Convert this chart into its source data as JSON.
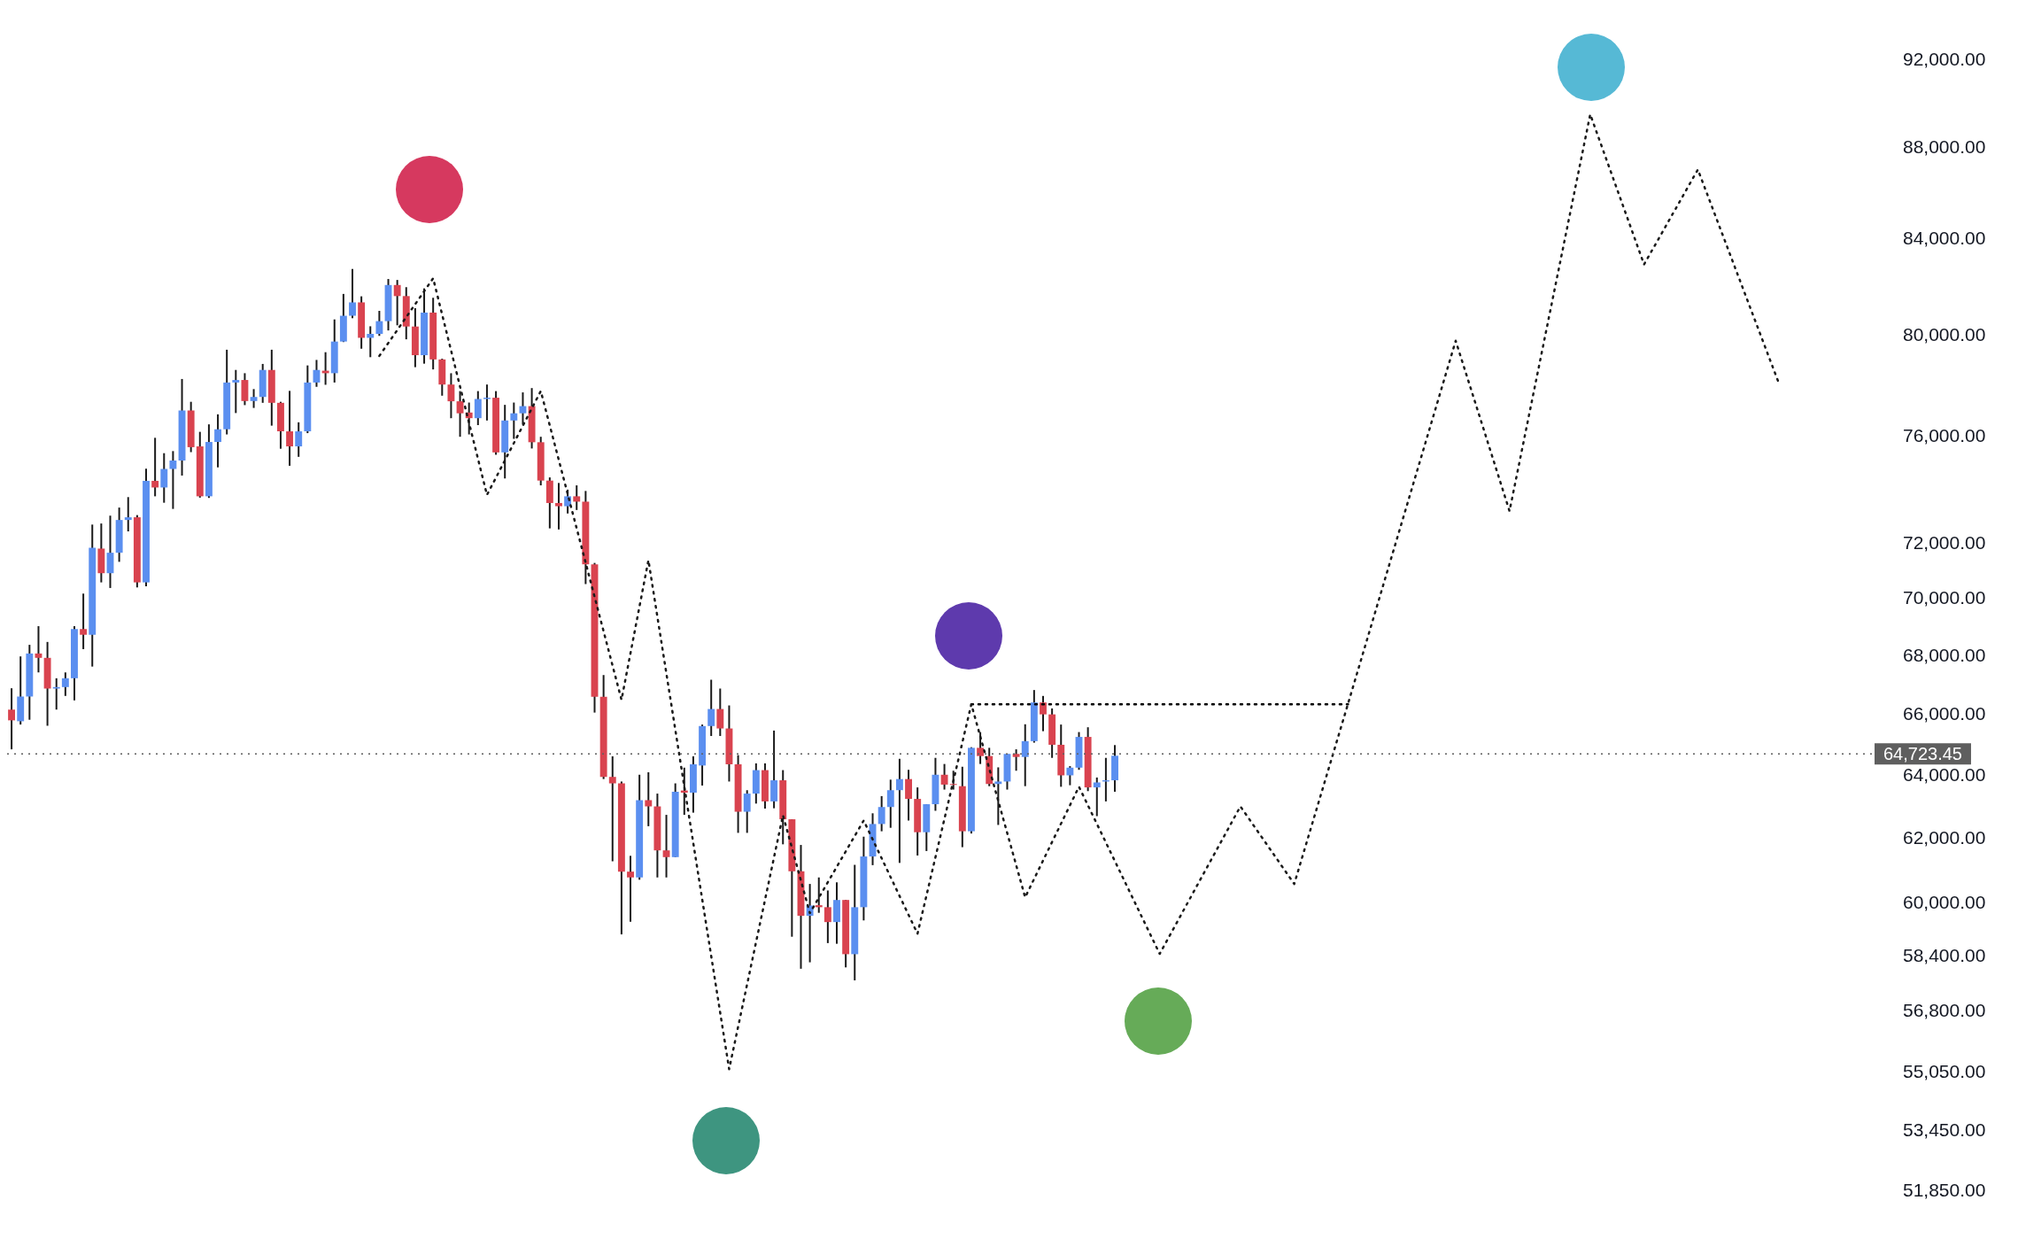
{
  "chart_data": {
    "type": "candlestick",
    "log": "y",
    "grid": false,
    "tick_labels": "y",
    "legend": false,
    "categories": [
      null,
      null,
      null,
      null,
      null,
      null,
      null,
      null,
      null,
      null,
      null,
      null,
      null,
      null,
      null,
      null,
      null,
      null,
      null,
      null,
      null,
      null,
      null,
      null,
      null,
      null,
      null,
      null,
      null,
      null,
      null,
      null,
      null,
      null,
      null,
      null,
      null,
      null,
      null,
      null,
      null,
      null,
      null,
      null,
      null,
      null,
      null,
      null,
      null,
      null,
      null,
      null,
      null,
      null,
      null,
      null,
      null,
      null,
      null,
      null,
      null,
      null,
      null,
      null,
      null,
      null,
      null,
      null,
      null,
      null,
      null,
      null,
      null,
      null,
      null,
      null,
      null,
      null,
      null,
      null,
      null,
      null,
      null,
      null,
      null,
      null,
      null,
      null,
      null,
      null,
      null,
      null,
      null,
      null,
      null,
      null,
      null,
      null,
      null,
      null,
      null,
      null,
      null,
      null,
      null,
      null,
      null,
      null,
      null,
      null,
      null,
      null,
      null,
      null,
      null,
      null,
      null,
      null,
      null,
      null,
      null,
      null,
      null,
      null,
      null,
      null,
      null,
      null,
      null,
      null,
      null,
      null,
      null,
      null,
      null,
      null,
      null,
      null,
      null,
      null,
      null,
      null,
      null,
      null,
      null,
      null,
      null,
      null,
      null,
      null,
      null,
      null,
      null,
      null,
      null,
      null,
      null,
      null,
      null,
      null,
      null,
      null,
      null,
      null,
      null,
      null,
      null,
      null,
      null,
      null,
      null,
      null,
      null,
      null,
      null,
      null,
      null,
      null,
      null,
      null,
      null,
      null,
      null,
      null,
      null,
      null,
      null,
      null,
      null,
      null,
      null,
      null,
      null,
      null,
      null,
      null,
      null,
      null,
      null,
      null,
      null,
      null,
      null,
      null,
      null,
      null,
      null,
      null
    ],
    "ylim": [
      51850,
      92000
    ],
    "yticks": [
      {
        "value": 51850,
        "label": "51,850.00"
      },
      {
        "value": 53450,
        "label": "53,450.00"
      },
      {
        "value": 55050,
        "label": "55,050.00"
      },
      {
        "value": 56800,
        "label": "56,800.00"
      },
      {
        "value": 58400,
        "label": "58,400.00"
      },
      {
        "value": 60000,
        "label": "60,000.00"
      },
      {
        "value": 62000,
        "label": "62,000.00"
      },
      {
        "value": 64000,
        "label": "64,000.00"
      },
      {
        "value": 66000,
        "label": "66,000.00"
      },
      {
        "value": 68000,
        "label": "68,000.00"
      },
      {
        "value": 70000,
        "label": "70,000.00"
      },
      {
        "value": 72000,
        "label": "72,000.00"
      },
      {
        "value": 76000,
        "label": "76,000.00"
      },
      {
        "value": 80000,
        "label": "80,000.00"
      },
      {
        "value": 84000,
        "label": "84,000.00"
      },
      {
        "value": 88000,
        "label": "88,000.00"
      },
      {
        "value": 92000,
        "label": "92,000.00"
      }
    ],
    "ref_lines": [
      {
        "axis": "y",
        "value": 64723.45,
        "label": "64,723.45",
        "color": "#5f5f5f",
        "line_style": "dotted"
      }
    ],
    "series": [
      {
        "ohlc": [
          [
            66190,
            66910,
            64870,
            65830
          ],
          [
            65800,
            68000,
            65690,
            66630
          ],
          [
            66630,
            68400,
            65850,
            68100
          ],
          [
            68100,
            69050,
            67450,
            67950
          ],
          [
            67950,
            68500,
            65650,
            66900
          ],
          [
            66900,
            67250,
            66190,
            66950
          ],
          [
            66950,
            67450,
            66650,
            67250
          ],
          [
            67250,
            69050,
            66500,
            68950
          ],
          [
            68950,
            70200,
            68250,
            68750
          ],
          [
            68750,
            72700,
            67650,
            71850
          ],
          [
            71820,
            72740,
            70600,
            70930
          ],
          [
            70930,
            73030,
            70400,
            71670
          ],
          [
            71670,
            73330,
            71340,
            72870
          ],
          [
            72870,
            73720,
            72450,
            72970
          ],
          [
            72970,
            73050,
            70420,
            70600
          ],
          [
            70600,
            74790,
            70460,
            74330
          ],
          [
            74330,
            75970,
            73750,
            74080
          ],
          [
            74080,
            75380,
            73510,
            74780
          ],
          [
            74780,
            75460,
            73280,
            75100
          ],
          [
            75100,
            78270,
            74530,
            77030
          ],
          [
            77030,
            77370,
            75420,
            75610
          ],
          [
            75640,
            76200,
            73700,
            73750
          ],
          [
            73750,
            76490,
            73690,
            75810
          ],
          [
            75810,
            76880,
            74840,
            76300
          ],
          [
            76300,
            79440,
            76100,
            78130
          ],
          [
            78130,
            78630,
            76930,
            78230
          ],
          [
            78230,
            78500,
            77240,
            77400
          ],
          [
            77400,
            77870,
            77130,
            77560
          ],
          [
            77560,
            78870,
            77330,
            78630
          ],
          [
            78630,
            79440,
            76440,
            77330
          ],
          [
            77330,
            77370,
            75550,
            76220
          ],
          [
            76220,
            77800,
            74900,
            75640
          ],
          [
            75640,
            76570,
            75240,
            76220
          ],
          [
            76220,
            78810,
            76150,
            78130
          ],
          [
            78130,
            79030,
            77960,
            78630
          ],
          [
            78600,
            79340,
            78040,
            78500
          ],
          [
            78500,
            80670,
            78130,
            79770
          ],
          [
            79770,
            81720,
            79750,
            80820
          ],
          [
            80820,
            82760,
            80720,
            81370
          ],
          [
            81370,
            81620,
            79480,
            79920
          ],
          [
            79920,
            80390,
            79140,
            80080
          ],
          [
            80080,
            81020,
            80000,
            80600
          ],
          [
            80600,
            82340,
            80220,
            82090
          ],
          [
            82090,
            82300,
            80430,
            81630
          ],
          [
            81630,
            82000,
            79860,
            80380
          ],
          [
            80380,
            81130,
            78740,
            79220
          ],
          [
            79220,
            81950,
            78880,
            80950
          ],
          [
            80950,
            81560,
            78650,
            79050
          ],
          [
            79050,
            79080,
            77610,
            78050
          ],
          [
            78050,
            78500,
            76730,
            77390
          ],
          [
            77390,
            77790,
            76010,
            76920
          ],
          [
            76950,
            77340,
            76100,
            76730
          ],
          [
            76730,
            77790,
            76460,
            77480
          ],
          [
            77480,
            78050,
            76640,
            77530
          ],
          [
            77530,
            77790,
            75320,
            75410
          ],
          [
            75410,
            77250,
            74420,
            76640
          ],
          [
            76640,
            77340,
            75930,
            76920
          ],
          [
            76920,
            77740,
            76490,
            77200
          ],
          [
            77200,
            77910,
            75560,
            75800
          ],
          [
            75800,
            76010,
            74160,
            74340
          ],
          [
            74340,
            74460,
            72560,
            73500
          ],
          [
            73500,
            74250,
            72520,
            73380
          ],
          [
            73380,
            74000,
            73110,
            73750
          ],
          [
            73750,
            74160,
            73240,
            73550
          ],
          [
            73550,
            73950,
            70540,
            71250
          ],
          [
            71250,
            71300,
            66090,
            66620
          ],
          [
            66620,
            67360,
            63900,
            63970
          ],
          [
            63970,
            64640,
            61290,
            63760
          ],
          [
            63760,
            63820,
            59060,
            60970
          ],
          [
            60970,
            61460,
            59440,
            60790
          ],
          [
            60790,
            64040,
            60720,
            63220
          ],
          [
            63220,
            64120,
            62390,
            63020
          ],
          [
            63020,
            63430,
            60790,
            61630
          ],
          [
            61630,
            62750,
            60790,
            61420
          ],
          [
            61420,
            63760,
            61420,
            63490
          ],
          [
            63530,
            64270,
            62750,
            63460
          ],
          [
            63460,
            64640,
            62820,
            64380
          ],
          [
            64340,
            65690,
            63690,
            65640
          ],
          [
            65640,
            67200,
            65310,
            66210
          ],
          [
            66210,
            66900,
            65310,
            65560
          ],
          [
            65560,
            66330,
            63820,
            64380
          ],
          [
            64380,
            64680,
            62180,
            62850
          ],
          [
            62850,
            63540,
            62180,
            63430
          ],
          [
            63430,
            64410,
            63110,
            64190
          ],
          [
            64190,
            64410,
            62950,
            63180
          ],
          [
            63180,
            65490,
            62960,
            63860
          ],
          [
            63860,
            64190,
            61820,
            62610
          ],
          [
            62610,
            62610,
            58990,
            60980
          ],
          [
            60980,
            61800,
            58040,
            59620
          ],
          [
            59620,
            60590,
            58230,
            59930
          ],
          [
            59940,
            60790,
            59710,
            59880
          ],
          [
            59880,
            60390,
            58800,
            59430
          ],
          [
            59430,
            60640,
            58780,
            60100
          ],
          [
            60100,
            60100,
            58080,
            58470
          ],
          [
            58470,
            61180,
            57700,
            59880
          ],
          [
            59880,
            62060,
            59480,
            61440
          ],
          [
            61440,
            62800,
            61170,
            62460
          ],
          [
            62460,
            63350,
            62230,
            63000
          ],
          [
            63000,
            63880,
            62340,
            63540
          ],
          [
            63540,
            64560,
            61240,
            63900
          ],
          [
            63900,
            64200,
            62570,
            63260
          ],
          [
            63260,
            63630,
            61470,
            62200
          ],
          [
            62200,
            63090,
            61610,
            63090
          ],
          [
            63090,
            64590,
            62880,
            64040
          ],
          [
            64040,
            64390,
            63560,
            63720
          ],
          [
            63740,
            64170,
            63560,
            63710
          ],
          [
            63670,
            64300,
            61730,
            62230
          ],
          [
            62230,
            64940,
            62160,
            64920
          ],
          [
            64920,
            65440,
            64390,
            64650
          ],
          [
            64650,
            64920,
            63670,
            63740
          ],
          [
            63740,
            64280,
            62430,
            63820
          ],
          [
            63820,
            64720,
            63560,
            64720
          ],
          [
            64720,
            64870,
            64170,
            64620
          ],
          [
            64620,
            65700,
            63670,
            65140
          ],
          [
            65140,
            66850,
            65090,
            66430
          ],
          [
            66430,
            66650,
            65470,
            66030
          ],
          [
            66030,
            66230,
            64590,
            65020
          ],
          [
            65020,
            65690,
            63650,
            64020
          ],
          [
            64020,
            64320,
            63700,
            64270
          ],
          [
            64270,
            65440,
            64200,
            65280
          ],
          [
            65280,
            65600,
            63510,
            63630
          ],
          [
            63630,
            63950,
            62710,
            63790
          ],
          [
            63820,
            64590,
            63180,
            63860
          ],
          [
            63860,
            65010,
            63490,
            64660
          ],
          null,
          null,
          null,
          null,
          null,
          null,
          null,
          null,
          null,
          null,
          null,
          null,
          null,
          null,
          null,
          null,
          null,
          null,
          null,
          null,
          null,
          null,
          null,
          null,
          null,
          null,
          null,
          null,
          null,
          null,
          null,
          null,
          null,
          null,
          null,
          null,
          null,
          null,
          null,
          null,
          null,
          null,
          null,
          null,
          null,
          null,
          null,
          null,
          null,
          null,
          null,
          null,
          null,
          null,
          null,
          null,
          null,
          null,
          null,
          null,
          null,
          null,
          null,
          null,
          null,
          null,
          null,
          null,
          null,
          null,
          null,
          null,
          null,
          null,
          null,
          null,
          null,
          null,
          null,
          null,
          null,
          null,
          null,
          null
        ],
        "colors": [
          "#d9434f",
          "#5b8ff0",
          "#5b8ff0",
          "#d9434f",
          "#d9434f",
          "#5b8ff0",
          "#5b8ff0",
          "#5b8ff0",
          "#d9434f",
          "#5b8ff0",
          "#d9434f",
          "#5b8ff0",
          "#5b8ff0",
          "#5b8ff0",
          "#d9434f",
          "#5b8ff0",
          "#d9434f",
          "#5b8ff0",
          "#5b8ff0",
          "#5b8ff0",
          "#d9434f",
          "#d9434f",
          "#5b8ff0",
          "#5b8ff0",
          "#5b8ff0",
          "#5b8ff0",
          "#d9434f",
          "#5b8ff0",
          "#5b8ff0",
          "#d9434f",
          "#d9434f",
          "#d9434f",
          "#5b8ff0",
          "#5b8ff0",
          "#5b8ff0",
          "#d9434f",
          "#5b8ff0",
          "#5b8ff0",
          "#5b8ff0",
          "#d9434f",
          "#5b8ff0",
          "#5b8ff0",
          "#5b8ff0",
          "#d9434f",
          "#d9434f",
          "#d9434f",
          "#5b8ff0",
          "#d9434f",
          "#d9434f",
          "#d9434f",
          "#d9434f",
          "#d9434f",
          "#5b8ff0",
          "#5b8ff0",
          "#d9434f",
          "#5b8ff0",
          "#5b8ff0",
          "#5b8ff0",
          "#d9434f",
          "#d9434f",
          "#d9434f",
          "#d9434f",
          "#5b8ff0",
          "#d9434f",
          "#d9434f",
          "#d9434f",
          "#d9434f",
          "#d9434f",
          "#d9434f",
          "#d9434f",
          "#5b8ff0",
          "#d9434f",
          "#d9434f",
          "#d9434f",
          "#5b8ff0",
          "#d9434f",
          "#5b8ff0",
          "#5b8ff0",
          "#5b8ff0",
          "#d9434f",
          "#d9434f",
          "#d9434f",
          "#5b8ff0",
          "#5b8ff0",
          "#d9434f",
          "#5b8ff0",
          "#d9434f",
          "#d9434f",
          "#d9434f",
          "#5b8ff0",
          "#d9434f",
          "#d9434f",
          "#5b8ff0",
          "#d9434f",
          "#5b8ff0",
          "#5b8ff0",
          "#5b8ff0",
          "#5b8ff0",
          "#5b8ff0",
          "#5b8ff0",
          "#d9434f",
          "#d9434f",
          "#5b8ff0",
          "#5b8ff0",
          "#d9434f",
          "#d9434f",
          "#d9434f",
          "#5b8ff0",
          "#d9434f",
          "#d9434f",
          "#5b8ff0",
          "#5b8ff0",
          "#d9434f",
          "#5b8ff0",
          "#5b8ff0",
          "#d9434f",
          "#d9434f",
          "#d9434f",
          "#5b8ff0",
          "#5b8ff0",
          "#d9434f",
          "#5b8ff0",
          "#5b8ff0",
          "#5b8ff0",
          null,
          null,
          null,
          null,
          null,
          null,
          null,
          null,
          null,
          null,
          null,
          null,
          null,
          null,
          null,
          null,
          null,
          null,
          null,
          null,
          null,
          null,
          null,
          null,
          null,
          null,
          null,
          null,
          null,
          null,
          null,
          null,
          null,
          null,
          null,
          null,
          null,
          null,
          null,
          null,
          null,
          null,
          null,
          null,
          null,
          null,
          null,
          null,
          null,
          null,
          null,
          null,
          null,
          null,
          null,
          null,
          null,
          null,
          null,
          null,
          null,
          null,
          null,
          null,
          null,
          null,
          null,
          null,
          null,
          null,
          null,
          null,
          null,
          null,
          null,
          null,
          null,
          null,
          null,
          null,
          null,
          null,
          null,
          null
        ]
      },
      {
        "type": "line",
        "color": "#1a1a1a",
        "line_style": "dotted",
        "marker": "none",
        "values": [
          null,
          null,
          null,
          null,
          null,
          null,
          null,
          null,
          null,
          null,
          null,
          null,
          null,
          null,
          null,
          null,
          null,
          null,
          null,
          null,
          null,
          null,
          null,
          null,
          null,
          null,
          null,
          null,
          null,
          null,
          null,
          null,
          null,
          null,
          null,
          null,
          null,
          null,
          null,
          null,
          null,
          79190,
          null,
          null,
          null,
          null,
          null,
          82370,
          null,
          null,
          null,
          null,
          null,
          73800,
          null,
          null,
          null,
          null,
          null,
          77790,
          null,
          null,
          null,
          null,
          null,
          null,
          null,
          null,
          66520,
          null,
          null,
          71400,
          null,
          null,
          null,
          null,
          null,
          null,
          null,
          null,
          55160,
          null,
          null,
          null,
          null,
          null,
          62740,
          null,
          null,
          59700,
          null,
          null,
          null,
          null,
          null,
          62570,
          null,
          null,
          null,
          null,
          null,
          59080,
          null,
          null,
          null,
          null,
          null,
          66370,
          null,
          null,
          null,
          null,
          null,
          60180,
          null,
          null,
          null,
          null,
          null,
          63650,
          null,
          null,
          null,
          null,
          null,
          null,
          null,
          null,
          58480,
          null,
          null,
          null,
          null,
          null,
          null,
          null,
          null,
          63020,
          null,
          null,
          null,
          null,
          null,
          60590,
          null,
          null,
          null,
          null,
          null,
          66390,
          null,
          null,
          null,
          null,
          null,
          null,
          null,
          null,
          null,
          null,
          null,
          79800,
          null,
          null,
          null,
          null,
          null,
          73200,
          null,
          null,
          null,
          null,
          null,
          null,
          null,
          null,
          89510,
          null,
          null,
          null,
          null,
          null,
          82950,
          null,
          null,
          null,
          null,
          null,
          87040,
          null,
          null,
          null,
          null,
          null,
          null,
          null,
          null,
          78130,
          null,
          null,
          null,
          null,
          null,
          null,
          null,
          null,
          null,
          null
        ]
      },
      {
        "type": "line",
        "color": "#000000",
        "line_style": "dotted",
        "marker": "none",
        "values": [
          null,
          null,
          null,
          null,
          null,
          null,
          null,
          null,
          null,
          null,
          null,
          null,
          null,
          null,
          null,
          null,
          null,
          null,
          null,
          null,
          null,
          null,
          null,
          null,
          null,
          null,
          null,
          null,
          null,
          null,
          null,
          null,
          null,
          null,
          null,
          null,
          null,
          null,
          null,
          null,
          null,
          null,
          null,
          null,
          null,
          null,
          null,
          null,
          null,
          null,
          null,
          null,
          null,
          null,
          null,
          null,
          null,
          null,
          null,
          null,
          null,
          null,
          null,
          null,
          null,
          null,
          null,
          null,
          null,
          null,
          null,
          null,
          null,
          null,
          null,
          null,
          null,
          null,
          null,
          null,
          null,
          null,
          null,
          null,
          null,
          null,
          null,
          null,
          null,
          null,
          null,
          null,
          null,
          null,
          null,
          null,
          null,
          null,
          null,
          null,
          null,
          null,
          null,
          null,
          null,
          null,
          null,
          66370,
          null,
          null,
          null,
          null,
          null,
          null,
          null,
          null,
          null,
          null,
          null,
          null,
          null,
          null,
          null,
          null,
          null,
          null,
          null,
          null,
          null,
          null,
          null,
          null,
          null,
          null,
          null,
          null,
          null,
          null,
          null,
          null,
          null,
          null,
          null,
          null,
          null,
          null,
          null,
          null,
          null,
          66370,
          null,
          null,
          null,
          null,
          null,
          null,
          null,
          null,
          null,
          null,
          null,
          null,
          null,
          null,
          null,
          null,
          null,
          null,
          null,
          null,
          null,
          null,
          null,
          null,
          null,
          null,
          null,
          null,
          null,
          null,
          null,
          null,
          null,
          null,
          null,
          null,
          null,
          null,
          null,
          null,
          null,
          null,
          null,
          null,
          null,
          null,
          null,
          null,
          null,
          null,
          null,
          null,
          null,
          null,
          null,
          null,
          null,
          null
        ]
      }
    ]
  }
}
